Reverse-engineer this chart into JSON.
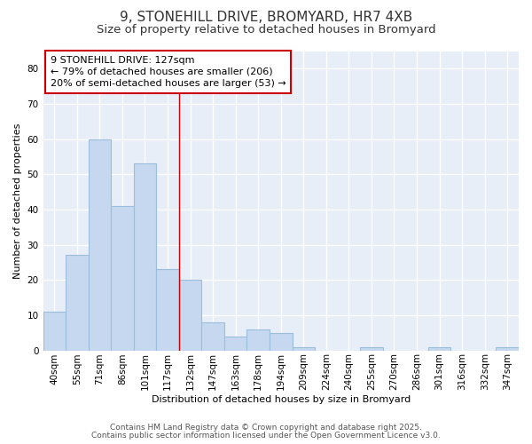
{
  "title_line1": "9, STONEHILL DRIVE, BROMYARD, HR7 4XB",
  "title_line2": "Size of property relative to detached houses in Bromyard",
  "xlabel": "Distribution of detached houses by size in Bromyard",
  "ylabel": "Number of detached properties",
  "bar_labels": [
    "40sqm",
    "55sqm",
    "71sqm",
    "86sqm",
    "101sqm",
    "117sqm",
    "132sqm",
    "147sqm",
    "163sqm",
    "178sqm",
    "194sqm",
    "209sqm",
    "224sqm",
    "240sqm",
    "255sqm",
    "270sqm",
    "286sqm",
    "301sqm",
    "316sqm",
    "332sqm",
    "347sqm"
  ],
  "bar_values": [
    11,
    27,
    60,
    41,
    53,
    23,
    20,
    8,
    4,
    6,
    5,
    1,
    0,
    0,
    1,
    0,
    0,
    1,
    0,
    0,
    1
  ],
  "bar_color": "#c5d8f0",
  "bar_edge_color": "#9bbedd",
  "property_line_x": 5.5,
  "annotation_line1": "9 STONEHILL DRIVE: 127sqm",
  "annotation_line2": "← 79% of detached houses are smaller (206)",
  "annotation_line3": "20% of semi-detached houses are larger (53) →",
  "annotation_box_color": "#ffffff",
  "annotation_border_color": "#cc0000",
  "ylim": [
    0,
    85
  ],
  "yticks": [
    0,
    10,
    20,
    30,
    40,
    50,
    60,
    70,
    80
  ],
  "footer_line1": "Contains HM Land Registry data © Crown copyright and database right 2025.",
  "footer_line2": "Contains public sector information licensed under the Open Government Licence v3.0.",
  "fig_bg_color": "#ffffff",
  "plot_bg_color": "#e8eef8",
  "grid_color": "#ffffff",
  "title_fontsize": 11,
  "subtitle_fontsize": 9.5,
  "axis_label_fontsize": 8,
  "tick_fontsize": 7.5,
  "footer_fontsize": 6.5,
  "annotation_fontsize": 8
}
